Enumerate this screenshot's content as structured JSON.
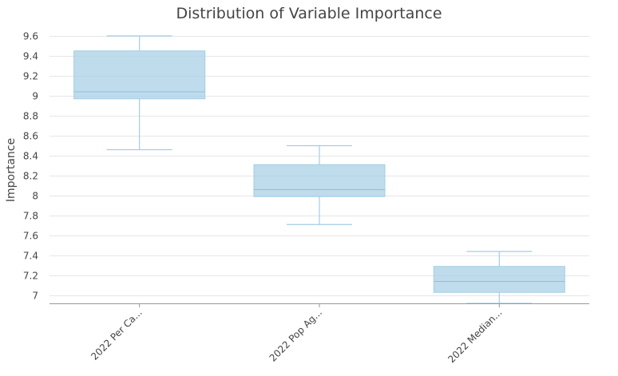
{
  "chart_data": {
    "type": "box",
    "title": "Distribution of Variable Importance",
    "xlabel": "",
    "ylabel": "Importance",
    "ylim": [
      6.92,
      9.65
    ],
    "yticks": [
      7,
      7.2,
      7.4,
      7.6,
      7.8,
      8,
      8.2,
      8.4,
      8.6,
      8.8,
      9,
      9.2,
      9.4,
      9.6
    ],
    "ytick_labels": [
      "7",
      "7.2",
      "7.4",
      "7.6",
      "7.8",
      "8",
      "8.2",
      "8.4",
      "8.6",
      "8.8",
      "9",
      "9.2",
      "9.4",
      "9.6"
    ],
    "grid": true,
    "legend": "none",
    "categories": [
      "2022 Per Ca...",
      "2022 Pop Ag...",
      "2022 Median..."
    ],
    "boxes": [
      {
        "category": "2022 Per Ca...",
        "min": 8.46,
        "q1": 8.97,
        "median": 9.04,
        "q3": 9.45,
        "max": 9.6
      },
      {
        "category": "2022 Pop Ag...",
        "min": 7.71,
        "q1": 7.99,
        "median": 8.06,
        "q3": 8.31,
        "max": 8.5
      },
      {
        "category": "2022 Median...",
        "min": 6.92,
        "q1": 7.03,
        "median": 7.14,
        "q3": 7.29,
        "max": 7.44
      }
    ],
    "colors": {
      "box_fill": "#a9d0e6",
      "box_stroke": "#a3cde4",
      "whisker": "#a3cde4",
      "grid": "#e6e6e6",
      "axis": "#999999",
      "text": "#444444",
      "title": "#444444"
    }
  }
}
